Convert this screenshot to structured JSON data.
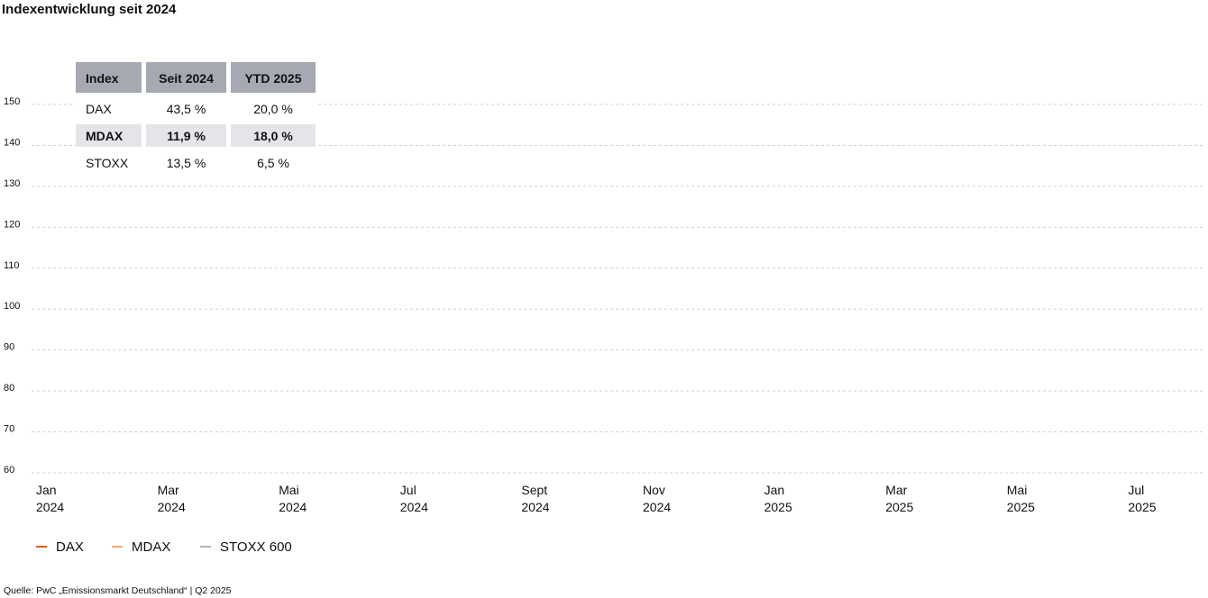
{
  "chart_data": {
    "type": "line",
    "title": "Indexentwicklung seit 2024",
    "x": [
      "Jan 2024",
      "Mar 2024",
      "Mai 2024",
      "Jul 2024",
      "Sept 2024",
      "Nov 2024",
      "Jan 2025",
      "Mar 2025",
      "Mai 2025",
      "Jul 2025"
    ],
    "series": [
      {
        "name": "DAX",
        "color": "#e0591b"
      },
      {
        "name": "MDAX",
        "color": "#f4a971"
      },
      {
        "name": "STOXX 600",
        "color": "#b3b3b3"
      }
    ],
    "ylim": [
      60,
      150
    ],
    "yticks": [
      60,
      70,
      80,
      90,
      100,
      110,
      120,
      130,
      140,
      150
    ],
    "grid": true,
    "table": {
      "columns": [
        "Index",
        "Seit 2024",
        "YTD 2025"
      ],
      "rows": [
        [
          "DAX",
          "43,5 %",
          "20,0 %"
        ],
        [
          "MDAX",
          "11,9 %",
          "18,0 %"
        ],
        [
          "STOXX",
          "13,5 %",
          "6,5 %"
        ]
      ]
    },
    "source": "Quelle: PwC „Emissionsmarkt Deutschland“ | Q2 2025"
  }
}
